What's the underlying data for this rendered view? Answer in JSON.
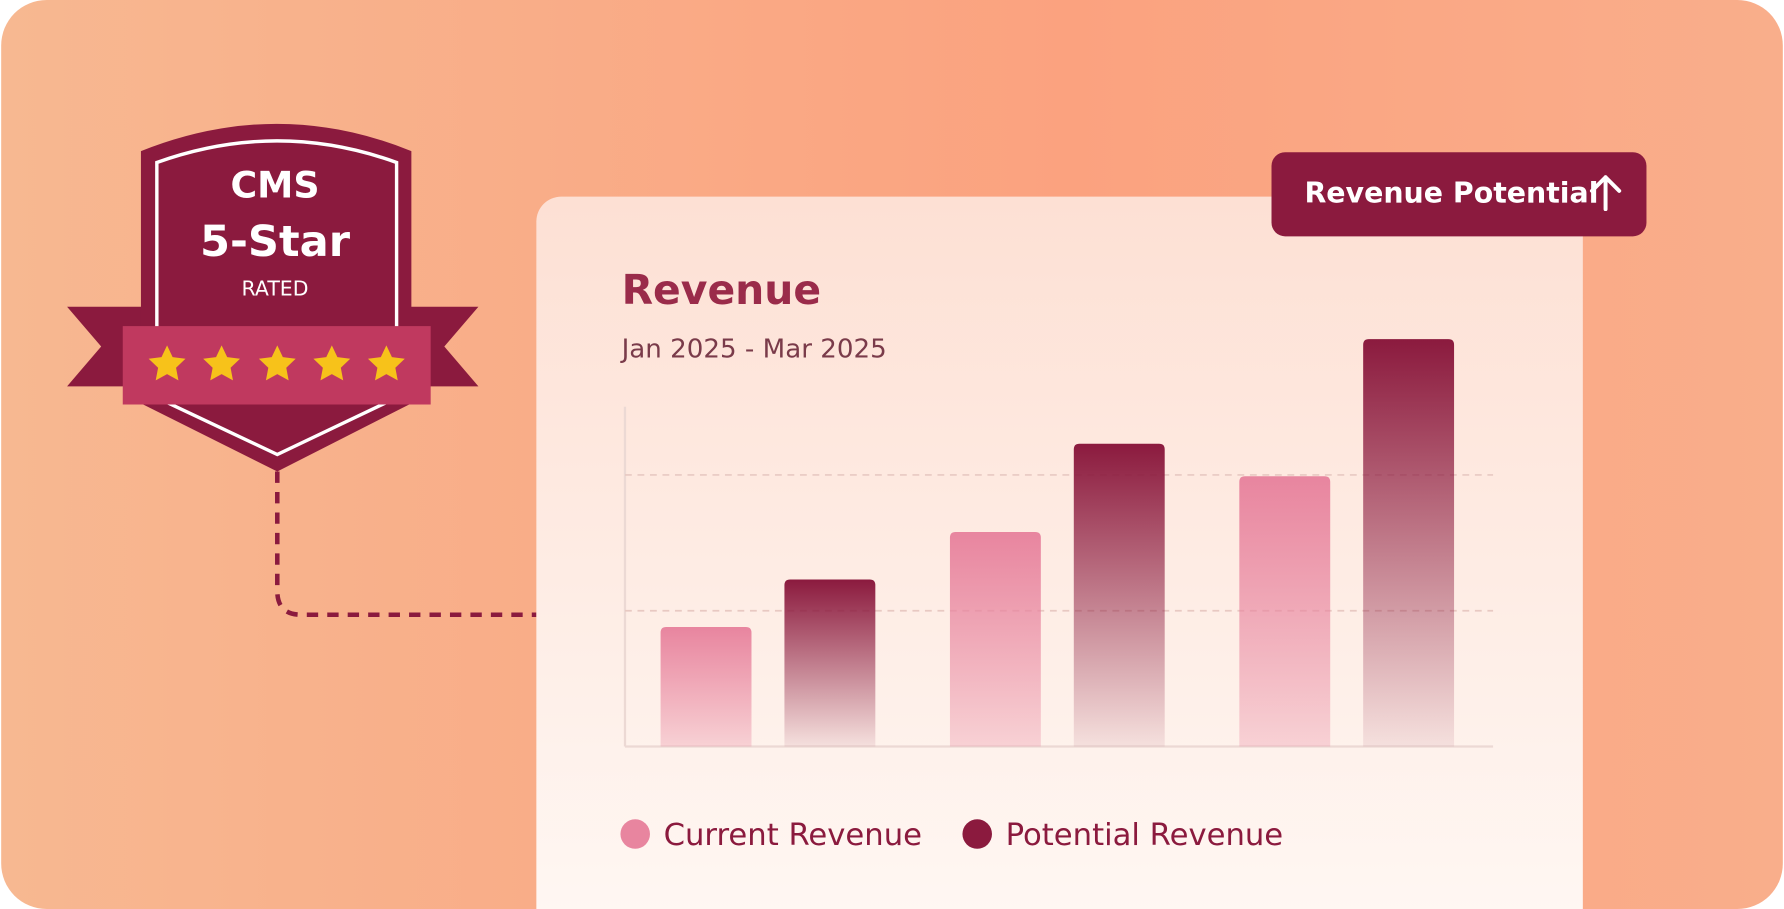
{
  "badge": {
    "line1": "CMS",
    "line2": "5-Star",
    "line3": "RATED"
  },
  "button": {
    "label": "Revenue Potential"
  },
  "chart_data": {
    "type": "bar",
    "title": "Revenue",
    "subtitle": "Jan 2025 - Mar 2025",
    "categories": [
      null,
      null,
      null
    ],
    "series": [
      {
        "name": "Current Revenue",
        "color": "#e8859f",
        "values": [
          0.88,
          1.58,
          1.99
        ]
      },
      {
        "name": "Potential Revenue",
        "color": "#8b1a3e",
        "values": [
          1.23,
          2.23,
          3.0
        ]
      }
    ],
    "ylim": [
      0,
      3
    ],
    "yticks": [
      1,
      2
    ],
    "grid": true
  }
}
